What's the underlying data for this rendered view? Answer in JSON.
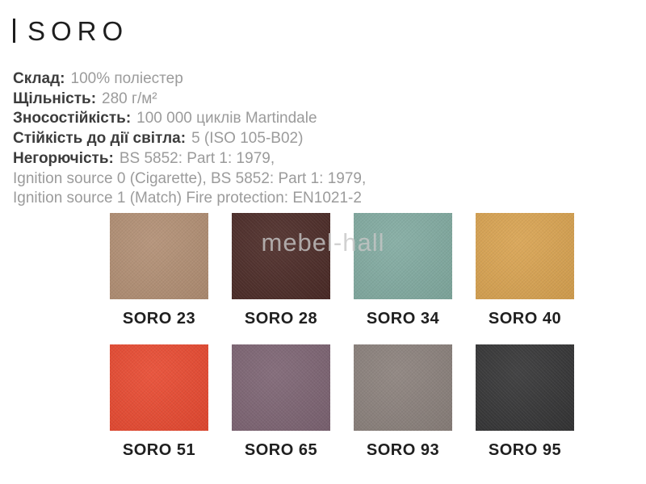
{
  "page": {
    "title": "SORO",
    "watermark": "mebel-hall"
  },
  "specs": {
    "lines": [
      {
        "label": "Склад:",
        "value": "100% поліестер"
      },
      {
        "label": "Щільність:",
        "value": "280 г/м²"
      },
      {
        "label": "Зносостійкість:",
        "value": "100 000 циклів Martindale"
      },
      {
        "label": "Стійкість до дії світла:",
        "value": "5 (ISO 105-B02)"
      },
      {
        "label": "Негорючість:",
        "value": "BS 5852: Part 1: 1979,"
      },
      {
        "label": "",
        "value": "Ignition source 0 (Cigarette), BS 5852: Part 1: 1979,"
      },
      {
        "label": "",
        "value": "Ignition source 1 (Match) Fire protection: EN1021-2"
      }
    ]
  },
  "swatches": {
    "items": [
      {
        "name": "SORO 23",
        "color": "#b28f74"
      },
      {
        "name": "SORO 28",
        "color": "#4c2b27"
      },
      {
        "name": "SORO 34",
        "color": "#82aba1"
      },
      {
        "name": "SORO 40",
        "color": "#d9a351"
      },
      {
        "name": "SORO 51",
        "color": "#e84a31"
      },
      {
        "name": "SORO 65",
        "color": "#7d6473"
      },
      {
        "name": "SORO 93",
        "color": "#8b817c"
      },
      {
        "name": "SORO 95",
        "color": "#353536"
      }
    ]
  },
  "colors": {
    "title_text": "#1e1e1e",
    "spec_label_text": "#3c3c3c",
    "spec_value_text": "#9b9b9b",
    "swatch_label_text": "#1f1f1f",
    "watermark_text": "#c6c6c6",
    "background": "#ffffff"
  }
}
